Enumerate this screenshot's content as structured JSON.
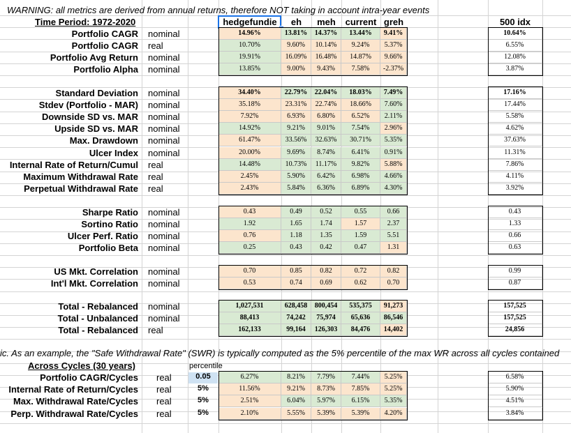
{
  "warning": "WARNING: all metrics are derived from annual returns, therefore NOT taking in account intra-year events",
  "time_period_label": "Time Period: 1972-2020",
  "note": "ic. As an example, the \"Safe Withdrawal Rate\" (SWR) is typically computed as the 5% percentile of the max WR across all cycles contained",
  "colors": {
    "green": "#d9ead3",
    "pink": "#fce5cd",
    "selection": "#1a73e8",
    "highlight": "#cfe2f3"
  },
  "columns": {
    "main": [
      "hedgefundie",
      "eh",
      "meh",
      "current",
      "greh"
    ],
    "bench": "500 idx"
  },
  "sections": [
    {
      "rows": [
        {
          "label": "Portfolio CAGR",
          "type": "nominal",
          "bold": true,
          "values": [
            "14.96%",
            "13.81%",
            "14.37%",
            "13.44%",
            "9.41%"
          ],
          "colors": [
            "pink",
            "green",
            "green",
            "green",
            "pink"
          ],
          "bench": "10.64%"
        },
        {
          "label": "Portfolio CAGR",
          "type": "real",
          "values": [
            "10.70%",
            "9.60%",
            "10.14%",
            "9.24%",
            "5.37%"
          ],
          "colors": [
            "green",
            "pink",
            "pink",
            "pink",
            "pink"
          ],
          "bench": "6.55%"
        },
        {
          "label": "Portfolio Avg Return",
          "type": "nominal",
          "values": [
            "19.91%",
            "16.09%",
            "16.48%",
            "14.87%",
            "9.66%"
          ],
          "colors": [
            "green",
            "pink",
            "pink",
            "pink",
            "pink"
          ],
          "bench": "12.08%"
        },
        {
          "label": "Portfolio Alpha",
          "type": "nominal",
          "values": [
            "13.85%",
            "9.00%",
            "9.43%",
            "7.58%",
            "-2.37%"
          ],
          "colors": [
            "green",
            "pink",
            "pink",
            "pink",
            "pink"
          ],
          "bench": "3.87%"
        }
      ]
    },
    {
      "rows": [
        {
          "label": "Standard Deviation",
          "type": "nominal",
          "bold": true,
          "values": [
            "34.40%",
            "22.79%",
            "22.04%",
            "18.03%",
            "7.49%"
          ],
          "colors": [
            "pink",
            "green",
            "green",
            "green",
            "green"
          ],
          "bench": "17.16%"
        },
        {
          "label": "Stdev (Portfolio - MAR)",
          "type": "nominal",
          "values": [
            "35.18%",
            "23.31%",
            "22.74%",
            "18.66%",
            "7.60%"
          ],
          "colors": [
            "pink",
            "pink",
            "pink",
            "pink",
            "green"
          ],
          "bench": "17.44%"
        },
        {
          "label": "Downside SD vs. MAR",
          "type": "nominal",
          "values": [
            "7.92%",
            "6.93%",
            "6.80%",
            "6.52%",
            "2.11%"
          ],
          "colors": [
            "pink",
            "pink",
            "pink",
            "pink",
            "green"
          ],
          "bench": "5.58%"
        },
        {
          "label": "Upside SD vs. MAR",
          "type": "nominal",
          "values": [
            "14.92%",
            "9.21%",
            "9.01%",
            "7.54%",
            "2.96%"
          ],
          "colors": [
            "green",
            "green",
            "green",
            "green",
            "pink"
          ],
          "bench": "4.62%"
        },
        {
          "label": "Max. Drawdown",
          "type": "nominal",
          "values": [
            "61.47%",
            "33.56%",
            "32.63%",
            "30.71%",
            "5.35%"
          ],
          "colors": [
            "pink",
            "green",
            "green",
            "green",
            "green"
          ],
          "bench": "37.63%"
        },
        {
          "label": "Ulcer Index",
          "type": "nominal",
          "values": [
            "20.00%",
            "9.69%",
            "8.74%",
            "6.41%",
            "0.91%"
          ],
          "colors": [
            "pink",
            "green",
            "green",
            "green",
            "green"
          ],
          "bench": "11.31%"
        },
        {
          "label": "Internal Rate of Return/Cumul",
          "type": "real",
          "values": [
            "14.48%",
            "10.73%",
            "11.17%",
            "9.82%",
            "5.88%"
          ],
          "colors": [
            "green",
            "green",
            "green",
            "green",
            "pink"
          ],
          "bench": "7.86%"
        },
        {
          "label": "Maximum Withdrawal Rate",
          "type": "real",
          "values": [
            "2.45%",
            "5.90%",
            "6.42%",
            "6.98%",
            "4.66%"
          ],
          "colors": [
            "pink",
            "green",
            "green",
            "green",
            "green"
          ],
          "bench": "4.11%"
        },
        {
          "label": "Perpetual Withdrawal Rate",
          "type": "real",
          "values": [
            "2.43%",
            "5.84%",
            "6.36%",
            "6.89%",
            "4.30%"
          ],
          "colors": [
            "pink",
            "green",
            "green",
            "green",
            "green"
          ],
          "bench": "3.92%"
        }
      ]
    },
    {
      "rows": [
        {
          "label": "Sharpe Ratio",
          "type": "nominal",
          "values": [
            "0.43",
            "0.49",
            "0.52",
            "0.55",
            "0.66"
          ],
          "colors": [
            "pink",
            "green",
            "green",
            "green",
            "green"
          ],
          "bench": "0.43"
        },
        {
          "label": "Sortino Ratio",
          "type": "nominal",
          "values": [
            "1.92",
            "1.65",
            "1.74",
            "1.57",
            "2.37"
          ],
          "colors": [
            "green",
            "green",
            "green",
            "pink",
            "green"
          ],
          "bench": "1.33"
        },
        {
          "label": "Ulcer Perf. Ratio",
          "type": "nominal",
          "values": [
            "0.76",
            "1.18",
            "1.35",
            "1.59",
            "5.51"
          ],
          "colors": [
            "pink",
            "green",
            "green",
            "green",
            "green"
          ],
          "bench": "0.66"
        },
        {
          "label": "Portfolio Beta",
          "type": "nominal",
          "values": [
            "0.25",
            "0.43",
            "0.42",
            "0.47",
            "1.31"
          ],
          "colors": [
            "green",
            "green",
            "green",
            "green",
            "pink"
          ],
          "bench": "0.63"
        }
      ]
    },
    {
      "rows": [
        {
          "label": "US Mkt. Correlation",
          "type": "nominal",
          "values": [
            "0.70",
            "0.85",
            "0.82",
            "0.72",
            "0.82"
          ],
          "colors": [
            "pink",
            "pink",
            "pink",
            "pink",
            "pink"
          ],
          "bench": "0.99"
        },
        {
          "label": "Int'l Mkt. Correlation",
          "type": "nominal",
          "values": [
            "0.53",
            "0.74",
            "0.69",
            "0.62",
            "0.70"
          ],
          "colors": [
            "pink",
            "pink",
            "pink",
            "pink",
            "pink"
          ],
          "bench": "0.87"
        }
      ]
    },
    {
      "rows": [
        {
          "label": "Total - Rebalanced",
          "type": "nominal",
          "bold": true,
          "values": [
            "1,027,531",
            "628,458",
            "800,454",
            "535,375",
            "91,273"
          ],
          "colors": [
            "green",
            "green",
            "green",
            "green",
            "pink"
          ],
          "bench": "157,525"
        },
        {
          "label": "Total - Unbalanced",
          "type": "nominal",
          "bold": true,
          "values": [
            "88,413",
            "74,242",
            "75,974",
            "65,636",
            "86,546"
          ],
          "colors": [
            "green",
            "green",
            "green",
            "green",
            "green"
          ],
          "bench": "157,525"
        },
        {
          "label": "Total - Rebalanced",
          "type": "real",
          "bold": true,
          "values": [
            "162,133",
            "99,164",
            "126,303",
            "84,476",
            "14,402"
          ],
          "colors": [
            "green",
            "green",
            "green",
            "green",
            "pink"
          ],
          "bench": "24,856"
        }
      ]
    }
  ],
  "cycles": {
    "title": "Across Cycles (30 years)",
    "percentile_header": "percentile",
    "rows": [
      {
        "label": "Portfolio CAGR/Cycles",
        "type": "real",
        "percentile": "0.05",
        "values": [
          "6.27%",
          "8.21%",
          "7.79%",
          "7.44%",
          "5.25%"
        ],
        "colors": [
          "green",
          "green",
          "green",
          "green",
          "pink"
        ],
        "bench": "6.58%"
      },
      {
        "label": "Internal Rate of Return/Cycles",
        "type": "real",
        "percentile": "5%",
        "values": [
          "11.56%",
          "9.21%",
          "8.73%",
          "7.85%",
          "5.25%"
        ],
        "colors": [
          "pink",
          "pink",
          "pink",
          "pink",
          "pink"
        ],
        "bench": "5.90%"
      },
      {
        "label": "Max. Withdrawal Rate/Cycles",
        "type": "real",
        "percentile": "5%",
        "values": [
          "2.51%",
          "6.04%",
          "5.97%",
          "6.15%",
          "5.35%"
        ],
        "colors": [
          "pink",
          "green",
          "green",
          "green",
          "green"
        ],
        "bench": "4.51%"
      },
      {
        "label": "Perp. Withdrawal Rate/Cycles",
        "type": "real",
        "percentile": "5%",
        "values": [
          "2.10%",
          "5.55%",
          "5.39%",
          "5.39%",
          "4.20%"
        ],
        "colors": [
          "pink",
          "pink",
          "pink",
          "pink",
          "pink"
        ],
        "bench": "3.84%"
      }
    ]
  }
}
